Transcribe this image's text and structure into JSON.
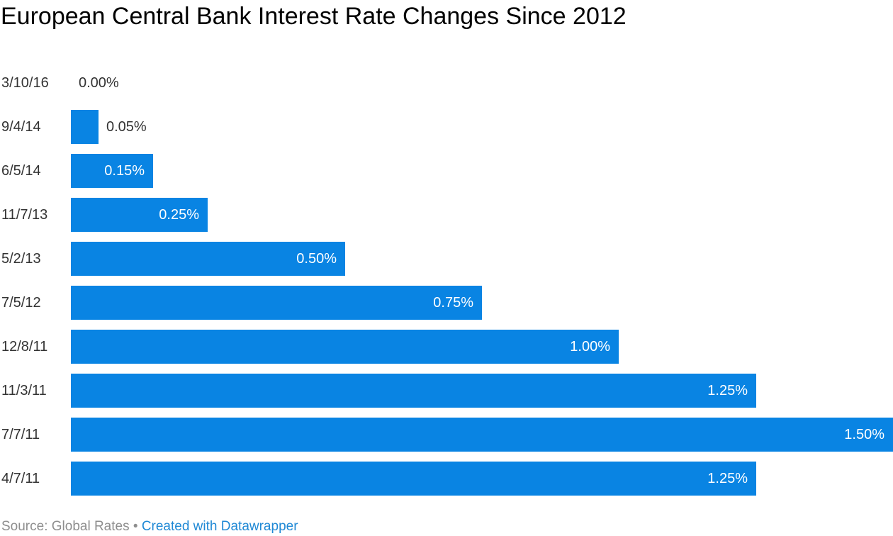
{
  "title": "European Central Bank Interest Rate Changes Since 2012",
  "footer": {
    "source_text": "Source: Global Rates",
    "separator": " • ",
    "attribution_link_text": "Created with Datawrapper"
  },
  "colors": {
    "bar_blue": "#0984e3",
    "title_black": "#000000",
    "label_dark": "#333333",
    "label_light": "#ffffff",
    "footer_gray": "#8e8e8e",
    "link_blue": "#2089d5"
  },
  "chart_data": {
    "type": "bar",
    "orientation": "horizontal",
    "title": "European Central Bank Interest Rate Changes Since 2012",
    "xlabel": "",
    "ylabel": "",
    "xlim": [
      0,
      1.5
    ],
    "grid": false,
    "legend": false,
    "categories": [
      "3/10/16",
      "9/4/14",
      "6/5/14",
      "11/7/13",
      "5/2/13",
      "7/5/12",
      "12/8/11",
      "11/3/11",
      "7/7/11",
      "4/7/11"
    ],
    "values": [
      0.0,
      0.05,
      0.15,
      0.25,
      0.5,
      0.75,
      1.0,
      1.25,
      1.5,
      1.25
    ],
    "value_labels": [
      "0.00%",
      "0.05%",
      "0.15%",
      "0.25%",
      "0.50%",
      "0.75%",
      "1.00%",
      "1.25%",
      "1.50%",
      "1.25%"
    ]
  }
}
